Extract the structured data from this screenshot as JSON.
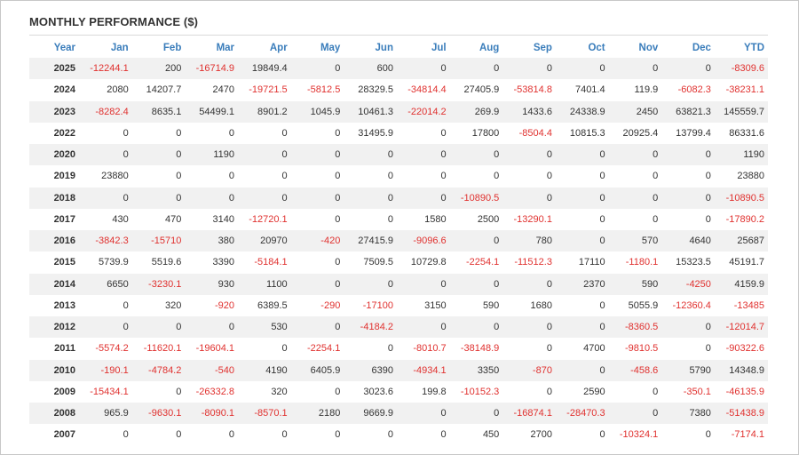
{
  "title": "MONTHLY PERFORMANCE ($)",
  "chart_data": {
    "type": "table",
    "title": "MONTHLY PERFORMANCE ($)",
    "columns": [
      "Year",
      "Jan",
      "Feb",
      "Mar",
      "Apr",
      "May",
      "Jun",
      "Jul",
      "Aug",
      "Sep",
      "Oct",
      "Nov",
      "Dec",
      "YTD"
    ],
    "rows": [
      [
        "2025",
        "-12244.1",
        "200",
        "-16714.9",
        "19849.4",
        "0",
        "600",
        "0",
        "0",
        "0",
        "0",
        "0",
        "0",
        "-8309.6"
      ],
      [
        "2024",
        "2080",
        "14207.7",
        "2470",
        "-19721.5",
        "-5812.5",
        "28329.5",
        "-34814.4",
        "27405.9",
        "-53814.8",
        "7401.4",
        "119.9",
        "-6082.3",
        "-38231.1"
      ],
      [
        "2023",
        "-8282.4",
        "8635.1",
        "54499.1",
        "8901.2",
        "1045.9",
        "10461.3",
        "-22014.2",
        "269.9",
        "1433.6",
        "24338.9",
        "2450",
        "63821.3",
        "145559.7"
      ],
      [
        "2022",
        "0",
        "0",
        "0",
        "0",
        "0",
        "31495.9",
        "0",
        "17800",
        "-8504.4",
        "10815.3",
        "20925.4",
        "13799.4",
        "86331.6"
      ],
      [
        "2020",
        "0",
        "0",
        "1190",
        "0",
        "0",
        "0",
        "0",
        "0",
        "0",
        "0",
        "0",
        "0",
        "1190"
      ],
      [
        "2019",
        "23880",
        "0",
        "0",
        "0",
        "0",
        "0",
        "0",
        "0",
        "0",
        "0",
        "0",
        "0",
        "23880"
      ],
      [
        "2018",
        "0",
        "0",
        "0",
        "0",
        "0",
        "0",
        "0",
        "-10890.5",
        "0",
        "0",
        "0",
        "0",
        "-10890.5"
      ],
      [
        "2017",
        "430",
        "470",
        "3140",
        "-12720.1",
        "0",
        "0",
        "1580",
        "2500",
        "-13290.1",
        "0",
        "0",
        "0",
        "-17890.2"
      ],
      [
        "2016",
        "-3842.3",
        "-15710",
        "380",
        "20970",
        "-420",
        "27415.9",
        "-9096.6",
        "0",
        "780",
        "0",
        "570",
        "4640",
        "25687"
      ],
      [
        "2015",
        "5739.9",
        "5519.6",
        "3390",
        "-5184.1",
        "0",
        "7509.5",
        "10729.8",
        "-2254.1",
        "-11512.3",
        "17110",
        "-1180.1",
        "15323.5",
        "45191.7"
      ],
      [
        "2014",
        "6650",
        "-3230.1",
        "930",
        "1100",
        "0",
        "0",
        "0",
        "0",
        "0",
        "2370",
        "590",
        "-4250",
        "4159.9"
      ],
      [
        "2013",
        "0",
        "320",
        "-920",
        "6389.5",
        "-290",
        "-17100",
        "3150",
        "590",
        "1680",
        "0",
        "5055.9",
        "-12360.4",
        "-13485"
      ],
      [
        "2012",
        "0",
        "0",
        "0",
        "530",
        "0",
        "-4184.2",
        "0",
        "0",
        "0",
        "0",
        "-8360.5",
        "0",
        "-12014.7"
      ],
      [
        "2011",
        "-5574.2",
        "-11620.1",
        "-19604.1",
        "0",
        "-2254.1",
        "0",
        "-8010.7",
        "-38148.9",
        "0",
        "4700",
        "-9810.5",
        "0",
        "-90322.6"
      ],
      [
        "2010",
        "-190.1",
        "-4784.2",
        "-540",
        "4190",
        "6405.9",
        "6390",
        "-4934.1",
        "3350",
        "-870",
        "0",
        "-458.6",
        "5790",
        "14348.9"
      ],
      [
        "2009",
        "-15434.1",
        "0",
        "-26332.8",
        "320",
        "0",
        "3023.6",
        "199.8",
        "-10152.3",
        "0",
        "2590",
        "0",
        "-350.1",
        "-46135.9"
      ],
      [
        "2008",
        "965.9",
        "-9630.1",
        "-8090.1",
        "-8570.1",
        "2180",
        "9669.9",
        "0",
        "0",
        "-16874.1",
        "-28470.3",
        "0",
        "7380",
        "-51438.9"
      ],
      [
        "2007",
        "0",
        "0",
        "0",
        "0",
        "0",
        "0",
        "0",
        "450",
        "2700",
        "0",
        "-10324.1",
        "0",
        "-7174.1"
      ]
    ]
  },
  "colors": {
    "header_text": "#3a7dbb",
    "negative": "#e0312f",
    "positive": "#333333",
    "stripe": "#f1f1f1"
  }
}
